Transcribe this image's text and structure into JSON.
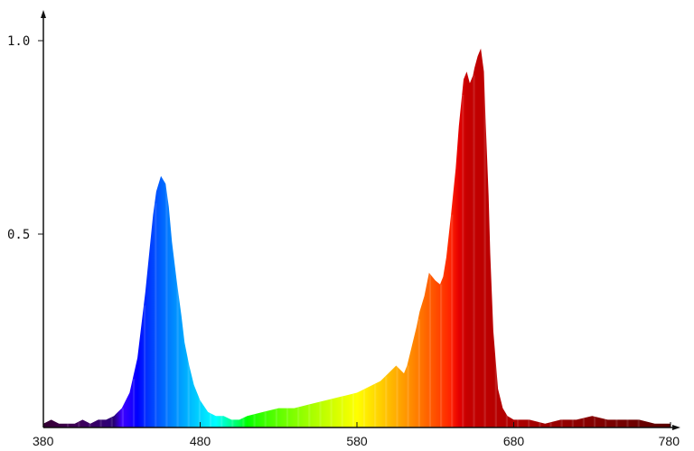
{
  "chart_data": {
    "type": "area",
    "title": "",
    "xlabel": "",
    "ylabel": "",
    "xlim": [
      380,
      780
    ],
    "ylim": [
      0,
      1.05
    ],
    "x_ticks": [
      380,
      480,
      580,
      680,
      780
    ],
    "x_tick_labels": [
      "380",
      "480",
      "580",
      "680",
      "780"
    ],
    "y_ticks": [
      0.5,
      1.0
    ],
    "y_tick_labels": [
      "0.5",
      "1.0"
    ],
    "fill": "visible-spectrum wavelength colors",
    "grid": false,
    "legend": "none",
    "series": [
      {
        "x": [
          380,
          385,
          390,
          395,
          400,
          405,
          410,
          415,
          420,
          425,
          430,
          435,
          440,
          445,
          450,
          452,
          455,
          458,
          460,
          462,
          465,
          468,
          470,
          473,
          476,
          480,
          485,
          490,
          495,
          500,
          505,
          510,
          520,
          530,
          540,
          550,
          560,
          570,
          580,
          585,
          590,
          595,
          600,
          605,
          610,
          612,
          615,
          618,
          620,
          623,
          626,
          630,
          633,
          635,
          637,
          640,
          643,
          645,
          648,
          650,
          652,
          654,
          655,
          657,
          659,
          661,
          662,
          664,
          665,
          667,
          670,
          673,
          676,
          680,
          685,
          690,
          700,
          710,
          720,
          730,
          740,
          750,
          760,
          770,
          780
        ],
        "y": [
          0.01,
          0.02,
          0.01,
          0.01,
          0.01,
          0.02,
          0.01,
          0.02,
          0.02,
          0.03,
          0.05,
          0.09,
          0.18,
          0.35,
          0.55,
          0.61,
          0.65,
          0.63,
          0.57,
          0.48,
          0.38,
          0.29,
          0.22,
          0.16,
          0.11,
          0.07,
          0.04,
          0.03,
          0.03,
          0.02,
          0.02,
          0.03,
          0.04,
          0.05,
          0.05,
          0.06,
          0.07,
          0.08,
          0.09,
          0.1,
          0.11,
          0.12,
          0.14,
          0.16,
          0.14,
          0.16,
          0.21,
          0.26,
          0.3,
          0.34,
          0.4,
          0.38,
          0.37,
          0.39,
          0.44,
          0.55,
          0.67,
          0.78,
          0.9,
          0.92,
          0.89,
          0.91,
          0.93,
          0.96,
          0.98,
          0.92,
          0.8,
          0.6,
          0.45,
          0.25,
          0.1,
          0.05,
          0.03,
          0.02,
          0.02,
          0.02,
          0.01,
          0.02,
          0.02,
          0.03,
          0.02,
          0.02,
          0.02,
          0.01,
          0.01
        ]
      }
    ]
  }
}
